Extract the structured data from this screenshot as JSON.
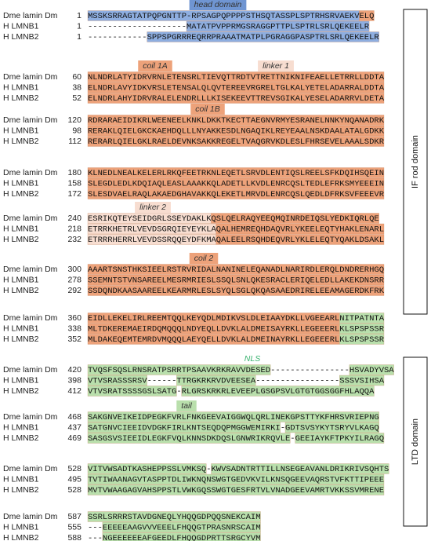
{
  "blocks": [
    {
      "annotations": [
        {
          "label": "head domain",
          "background": "#6f95d2"
        }
      ],
      "rows": [
        {
          "name": "Dme lamin Dm",
          "start": 1,
          "segments": [
            {
              "text": "MSSKSRRAGTATPQPGNTTP-RPSAGPQPPPPSTHSQTASSPLSPTRHSRVAEKV",
              "color": "#8eaee0"
            },
            {
              "text": "ELQ",
              "color": "#eda27a"
            }
          ]
        },
        {
          "name": "H LMNB1",
          "start": 1,
          "segments": [
            {
              "text": "--------------------"
            },
            {
              "text": "MATATPVPPRMGSRAGGPTTPLSPTRLSRLQEKEELR",
              "color": "#8eaee0"
            }
          ]
        },
        {
          "name": "H LMNB2",
          "start": 1,
          "segments": [
            {
              "text": "------------"
            },
            {
              "text": "SPPSPGRRREQRRPRAAATMATPLPGRAGGPASPTRLSRLQEKEELR",
              "color": "#8eaee0"
            }
          ]
        }
      ]
    },
    {
      "annotations": [
        {
          "label": "coil 1A",
          "background": "#eda27a"
        },
        {
          "label": "linker 1",
          "background": "#f7ddd0"
        }
      ],
      "rows": [
        {
          "name": "Dme lamin Dm",
          "start": 60,
          "segments": [
            {
              "text": "NLNDRLATYIDRVRNLETENSRLTIEVQTTRDTVTRETTNIKNIFEAELLETRRLLDDTA",
              "color": "#eda27a"
            }
          ]
        },
        {
          "name": "H LMNB1",
          "start": 38,
          "segments": [
            {
              "text": "ELNDRLAVYIDKVRSLETENSALQLQVTEREEVRGRELTGLKALYETELADARRALDDTA",
              "color": "#eda27a"
            }
          ]
        },
        {
          "name": "H LMNB2",
          "start": 52,
          "segments": [
            {
              "text": "ELNDRLAHYIDRVRALELENDRLLLKISEKEEVTTREVSGIKALYESELADARRVLDETA",
              "color": "#eda27a"
            }
          ]
        }
      ]
    },
    {
      "annotations": [
        {
          "label": "coil 1B",
          "background": "#eda27a"
        }
      ],
      "rows": [
        {
          "name": "Dme lamin Dm",
          "start": 120,
          "segments": [
            {
              "text": "RDRARAEIDIKRLWEENEELKNKLDKKTKECTTAEGNVRMYESRANELNNKYNQANADRK",
              "color": "#eda27a"
            }
          ]
        },
        {
          "name": "H LMNB1",
          "start": 98,
          "segments": [
            {
              "text": "RERAKLQIELGKCKAEHDQLLLNYAKKESDLNGAQIKLREYEAALNSKDAALATALGDKK",
              "color": "#eda27a"
            }
          ]
        },
        {
          "name": "H LMNB2",
          "start": 112,
          "segments": [
            {
              "text": "RERARLQIELGKLRAELDEVNKSAKKREGELTVAQGRVKDLESLFHRSEVELAAALSDKR",
              "color": "#eda27a"
            }
          ]
        }
      ]
    },
    {
      "annotations": [],
      "rows": [
        {
          "name": "Dme lamin Dm",
          "start": 180,
          "segments": [
            {
              "text": "KLNEDLNEALKELERLRKQFEETRKNLEQETLSRVDLENTIQSLREELSFKDQIHSQEIN",
              "color": "#eda27a"
            }
          ]
        },
        {
          "name": "H LMNB1",
          "start": 158,
          "segments": [
            {
              "text": "SLEGDLEDLKDQIAQLEASLAAAKKQLADETLLKVDLENRCQSLTEDLEFRKSMYEEEIN",
              "color": "#eda27a"
            }
          ]
        },
        {
          "name": "H LMNB2",
          "start": 172,
          "segments": [
            {
              "text": "SLESDVAELRAQLAKAEDGHAVAKKQLEKETLMRVDLENRCQSLQEDLDFRKSVFEEEVR",
              "color": "#eda27a"
            }
          ]
        }
      ]
    },
    {
      "annotations": [
        {
          "label": "linker 2",
          "background": "#f7ddd0"
        }
      ],
      "rows": [
        {
          "name": "Dme lamin Dm",
          "start": 240,
          "segments": [
            {
              "text": "ESRIKQTEYSEIDGRLSSEYDAKLK",
              "color": "#f7ddd0"
            },
            {
              "text": "QSLQELRAQYEEQMQINRDEIQSLYEDKIQRLQE",
              "color": "#eda27a"
            }
          ]
        },
        {
          "name": "H LMNB1",
          "start": 218,
          "segments": [
            {
              "text": "ETRRKHETRLVEVDSGRQIEYEYKLA",
              "color": "#f7ddd0"
            },
            {
              "text": "QALHEMREQHDAQVRLYKEELEQTYHAKLENARL",
              "color": "#eda27a"
            }
          ]
        },
        {
          "name": "H LMNB2",
          "start": 232,
          "segments": [
            {
              "text": "ETRRRHERRLVEVDSSRQQEYDFKMA",
              "color": "#f7ddd0"
            },
            {
              "text": "QALEELRSQHDEQVRLYKLELEQTYQAKLDSAKL",
              "color": "#eda27a"
            }
          ]
        }
      ]
    },
    {
      "annotations": [
        {
          "label": "coil 2",
          "background": "#eda27a"
        }
      ],
      "rows": [
        {
          "name": "Dme lamin Dm",
          "start": 300,
          "segments": [
            {
              "text": "AAARTSNSTHKSIEELRSTRVRIDALNANINELEQANADLNARIRDLERQLDNDRERHGQ",
              "color": "#eda27a"
            }
          ]
        },
        {
          "name": "H LMNB1",
          "start": 278,
          "segments": [
            {
              "text": "SSEMNTSTVNSAREELMESRMRIESLSSQLSNLQKESRACLERIQELEDLLAKEKDNSRR",
              "color": "#eda27a"
            }
          ]
        },
        {
          "name": "H LMNB2",
          "start": 292,
          "segments": [
            {
              "text": "SSDQNDKAASAAREELKEARMRLESLSYQLSGLQKQASAAEDRIRELEEAMAGERDKFRK",
              "color": "#eda27a"
            }
          ]
        }
      ]
    },
    {
      "annotations": [],
      "rows": [
        {
          "name": "Dme lamin Dm",
          "start": 360,
          "segments": [
            {
              "text": "EIDLLEKELIRLREEMTQQLKEYQDLMDIKVSLDLEIAAYDKLLVGEEARL",
              "color": "#eda27a"
            },
            {
              "text": "NITPATNTA",
              "color": "#b9dfac"
            }
          ]
        },
        {
          "name": "H LMNB1",
          "start": 338,
          "segments": [
            {
              "text": "MLTDKEREMAEIRDQMQQQLNDYEQLLDVKLALDMEISAYRKLLEGEEERL",
              "color": "#eda27a"
            },
            {
              "text": "KLSPSPSSR",
              "color": "#b9dfac"
            }
          ]
        },
        {
          "name": "H LMNB2",
          "start": 352,
          "segments": [
            {
              "text": "MLDAKEQEMTEMRDVMQQQLAEYQELLDVKLALDMEINAYRKLLEGEEERL",
              "color": "#eda27a"
            },
            {
              "text": "KLSPSPSSR",
              "color": "#b9dfac"
            }
          ]
        }
      ]
    },
    {
      "annotations": [
        {
          "label": "NLS",
          "text_color": "#3cb371"
        }
      ],
      "rows": [
        {
          "name": "Dme lamin Dm",
          "start": 420,
          "segments": [
            {
              "text": "TVQSFSQSLRNSRATPSRRTPSAAVKRKRAVVDESED",
              "color": "#b9dfac"
            },
            {
              "text": "----------------"
            },
            {
              "text": "HSVADYVSA",
              "color": "#b9dfac"
            }
          ]
        },
        {
          "name": "H LMNB1",
          "start": 398,
          "segments": [
            {
              "text": "VTVSRASSSRSV",
              "color": "#b9dfac"
            },
            {
              "text": "------"
            },
            {
              "text": "TTRGKRKRVDVEESEA",
              "color": "#b9dfac"
            },
            {
              "text": "-----------------"
            },
            {
              "text": "SSSVSIHSA",
              "color": "#b9dfac"
            }
          ]
        },
        {
          "name": "H LMNB2",
          "start": 412,
          "segments": [
            {
              "text": "VTVSRATSSSSGSLSATG",
              "color": "#b9dfac"
            },
            {
              "text": "-"
            },
            {
              "text": "RLGRSKRKRLEVEEPLGSGPSVLGTGTGGSGGFHLAQQA",
              "color": "#b9dfac"
            }
          ]
        }
      ]
    },
    {
      "annotations": [
        {
          "label": "tail",
          "background": "#b9dfac"
        }
      ],
      "rows": [
        {
          "name": "Dme lamin Dm",
          "start": 468,
          "segments": [
            {
              "text": "SAKGNVEIKEIDPEGKFVRLFNKGEEVAIGGWQLQRLINEKGPSTTYKFHRSVRIEPNG",
              "color": "#b9dfac"
            }
          ]
        },
        {
          "name": "H LMNB1",
          "start": 437,
          "segments": [
            {
              "text": "SATGNVCIEEIDVDGKFIRLKNTSEQDQPMGGWEMIRKI",
              "color": "#b9dfac"
            },
            {
              "text": "-"
            },
            {
              "text": "GDTSVSYKYTSRYVLKAGQ",
              "color": "#b9dfac"
            }
          ]
        },
        {
          "name": "H LMNB2",
          "start": 469,
          "segments": [
            {
              "text": "SASGSVSIEEIDLEGKFVQLKNNSDKDQSLGNWRIKRQVLE",
              "color": "#b9dfac"
            },
            {
              "text": "-"
            },
            {
              "text": "GEEIAYKFTPKYILRAGQ",
              "color": "#b9dfac"
            }
          ]
        }
      ]
    },
    {
      "annotations": [],
      "rows": [
        {
          "name": "Dme lamin Dm",
          "start": 528,
          "segments": [
            {
              "text": "VITVWSADTKASHEPPSSLVMKSQ",
              "color": "#b9dfac"
            },
            {
              "text": "-"
            },
            {
              "text": "KWVSADNTRTTILLNSEGEAVANLDRIKRIVSQHTS",
              "color": "#b9dfac"
            }
          ]
        },
        {
          "name": "H LMNB1",
          "start": 495,
          "segments": [
            {
              "text": "TVTIWAANAGVTASPPTDLIWKNQNSWGTGEDVKVILKNSQGEEVAQRSTVFKTTIPEEE",
              "color": "#b9dfac"
            }
          ]
        },
        {
          "name": "H LMNB2",
          "start": 528,
          "segments": [
            {
              "text": "MVTVWAAGAGVAHSPPSTLVWKGQSSWGTGESFRTVLVNADGEEVAMRTVKKSSVMRENE",
              "color": "#b9dfac"
            }
          ]
        }
      ]
    },
    {
      "annotations": [],
      "rows": [
        {
          "name": "Dme lamin Dm",
          "start": 587,
          "segments": [
            {
              "text": "SSRLSRRRSTAVDGNEQLYHQQGDPQQSNEKCAIM",
              "color": "#b9dfac"
            }
          ]
        },
        {
          "name": "H LMNB1",
          "start": 555,
          "segments": [
            {
              "text": "---"
            },
            {
              "text": "EEEEEAAGVVVEEELFHQQGTPRASNRSCAIM",
              "color": "#b9dfac"
            }
          ]
        },
        {
          "name": "H LMNB2",
          "start": 588,
          "segments": [
            {
              "text": "---"
            },
            {
              "text": "NGEEEEEEAFGEEDLFHQQGDPRTTSRGCYVM",
              "color": "#b9dfac"
            }
          ]
        }
      ]
    }
  ],
  "domains": [
    {
      "label": "IF rod domain"
    },
    {
      "label": "LTD domain"
    }
  ]
}
